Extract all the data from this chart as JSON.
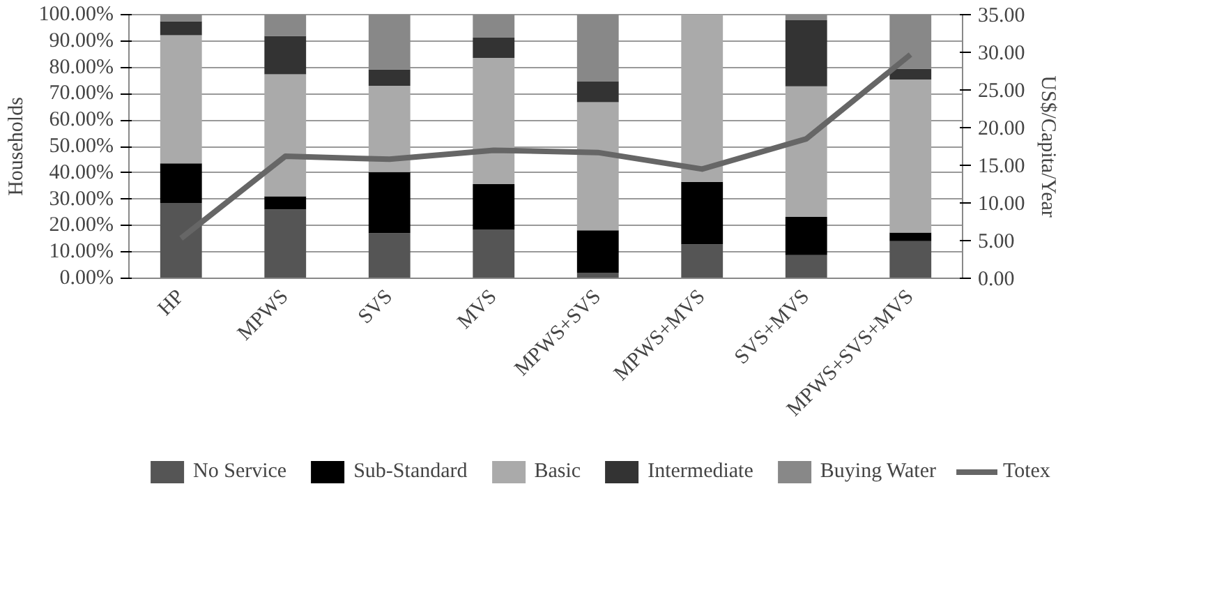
{
  "chart_data": {
    "type": "bar",
    "stacked": true,
    "ylabel": "Households",
    "y2label": "US$/Capita/Year",
    "categories": [
      "HP",
      "MPWS",
      "SVS",
      "MVS",
      "MPWS+SVS",
      "MPWS+MVS",
      "SVS+MVS",
      "MPWS+SVS+MVS"
    ],
    "series": [
      {
        "name": "No Service",
        "color": "#555555",
        "values": [
          28.6,
          26.1,
          17.1,
          18.4,
          2.1,
          12.9,
          8.8,
          14.1
        ]
      },
      {
        "name": "Sub-Standard",
        "color": "#000000",
        "values": [
          15.0,
          5.0,
          23.2,
          17.3,
          16.1,
          23.7,
          14.5,
          3.2
        ]
      },
      {
        "name": "Basic",
        "color": "#aaaaaa",
        "values": [
          48.6,
          46.3,
          32.7,
          47.9,
          48.6,
          63.4,
          49.5,
          58.1
        ]
      },
      {
        "name": "Intermediate",
        "color": "#333333",
        "values": [
          5.3,
          14.5,
          6.2,
          7.7,
          7.8,
          0,
          25.1,
          4.1
        ]
      },
      {
        "name": "Buying Water",
        "color": "#888888",
        "values": [
          2.5,
          8.1,
          20.8,
          8.7,
          25.4,
          0,
          2.1,
          20.5
        ]
      },
      {
        "name": "Totex",
        "type": "line",
        "axis": "y2",
        "color": "#666666",
        "values": [
          5.3,
          16.2,
          15.8,
          17.0,
          16.7,
          14.5,
          18.5,
          29.7
        ]
      }
    ],
    "ylim": [
      0,
      100
    ],
    "yticks": [
      {
        "value": 0,
        "label": "0.00%"
      },
      {
        "value": 10,
        "label": "10.00%"
      },
      {
        "value": 20,
        "label": "20.00%"
      },
      {
        "value": 30,
        "label": "30.00%"
      },
      {
        "value": 40,
        "label": "40.00%"
      },
      {
        "value": 50,
        "label": "50.00%"
      },
      {
        "value": 60,
        "label": "60.00%"
      },
      {
        "value": 70,
        "label": "70.00%"
      },
      {
        "value": 80,
        "label": "80.00%"
      },
      {
        "value": 90,
        "label": "90.00%"
      },
      {
        "value": 100,
        "label": "100.00%"
      }
    ],
    "y2lim": [
      0,
      35
    ],
    "y2ticks": [
      {
        "value": 0,
        "label": "0.00"
      },
      {
        "value": 5,
        "label": "5.00"
      },
      {
        "value": 10,
        "label": "10.00"
      },
      {
        "value": 15,
        "label": "15.00"
      },
      {
        "value": 20,
        "label": "20.00"
      },
      {
        "value": 25,
        "label": "25.00"
      },
      {
        "value": 30,
        "label": "30.00"
      },
      {
        "value": 35,
        "label": "35.00"
      }
    ],
    "grid": "y",
    "legend": "bottom",
    "marker": "none",
    "line_style": "solid"
  }
}
